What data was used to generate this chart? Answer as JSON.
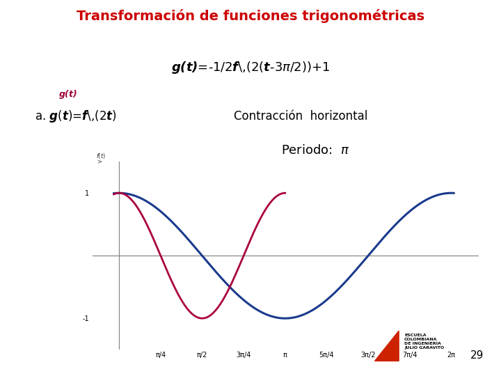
{
  "title_bar_text": "Transformación de funciones trigonométricas",
  "title_bar_bg": "#4a6e00",
  "title_bar_color": "#cc0000",
  "bg_color": "#ffffff",
  "blue_curve_color": "#1a3a8c",
  "red_curve_color": "#aa0040",
  "axis_color": "#888888",
  "gt_label_color": "#990033",
  "xlim": [
    -0.5,
    6.8
  ],
  "ylim": [
    -1.5,
    1.5
  ],
  "xticks": [
    0.7854,
    1.5708,
    2.3562,
    3.1416,
    3.927,
    4.7124,
    5.4978,
    6.2832
  ],
  "xtick_labels": [
    "π/4",
    "π/2",
    "3π/4",
    "π",
    "5π/4",
    "3π/2",
    "7π/4",
    "2π"
  ],
  "ytick_1_label": "1",
  "ytick_m1_label": "-1"
}
